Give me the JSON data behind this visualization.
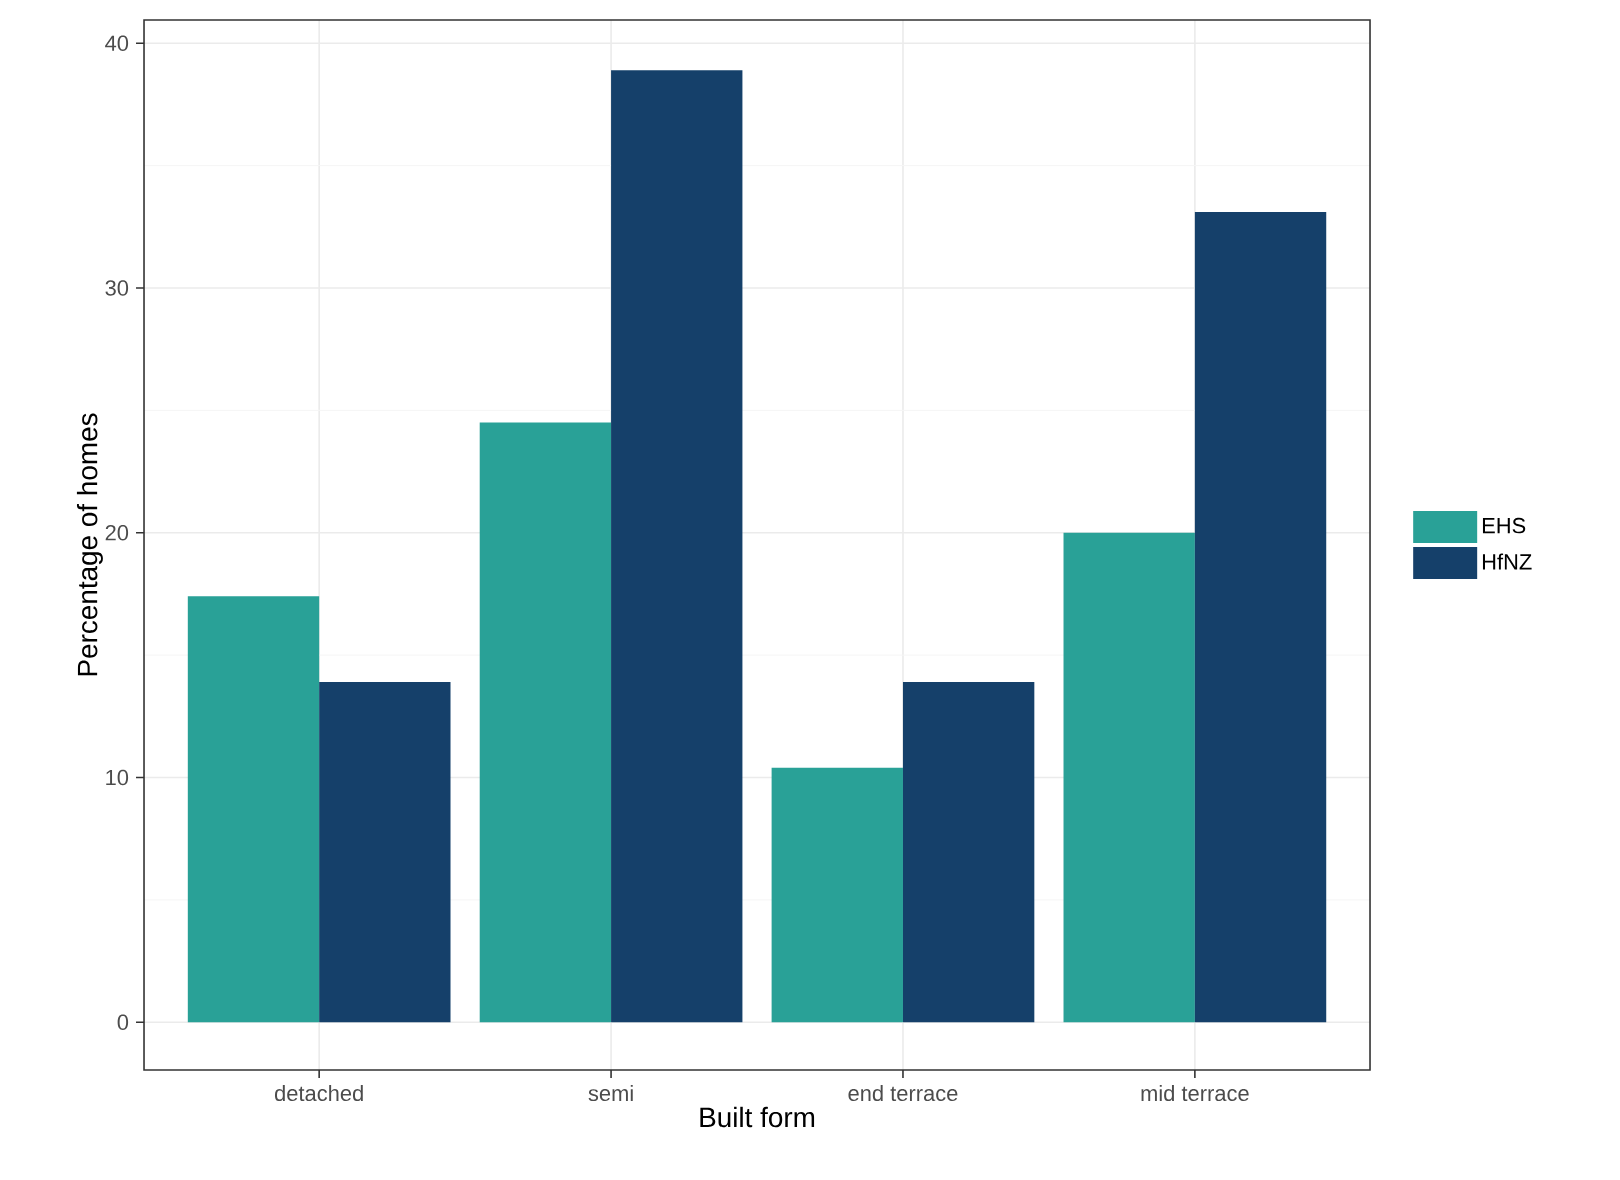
{
  "chart_data": {
    "type": "bar",
    "xlabel": "Built form",
    "ylabel": "Percentage of homes",
    "categories": [
      "detached",
      "semi",
      "end terrace",
      "mid terrace"
    ],
    "series": [
      {
        "name": "EHS",
        "color": "#29a197",
        "values": [
          17.4,
          24.5,
          10.4,
          20.0
        ]
      },
      {
        "name": "HfNZ",
        "color": "#15406a",
        "values": [
          13.9,
          38.9,
          13.9,
          33.1
        ]
      }
    ],
    "ylim": [
      -1.95,
      40.95
    ],
    "yticks": [
      0,
      10,
      20,
      30,
      40
    ],
    "grid": true,
    "legend": "right"
  }
}
